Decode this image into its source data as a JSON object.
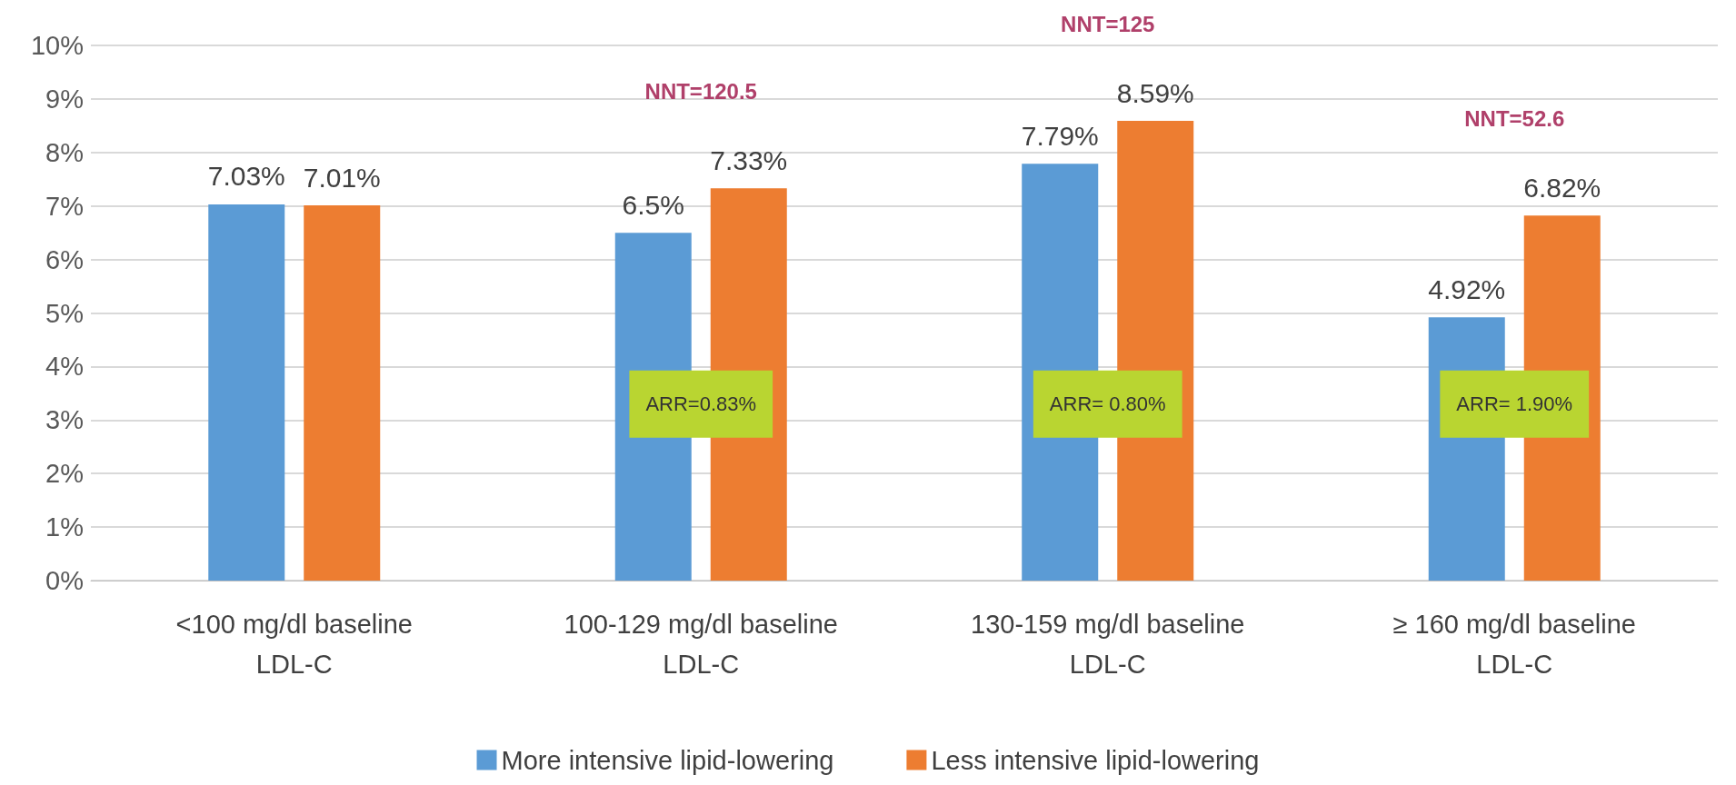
{
  "chart_data": {
    "type": "bar",
    "categories": [
      "<100 mg/dl baseline\nLDL-C",
      "100-129 mg/dl baseline\nLDL-C",
      "130-159 mg/dl baseline\nLDL-C",
      "≥ 160 mg/dl baseline\nLDL-C"
    ],
    "series": [
      {
        "name": "More intensive lipid-lowering",
        "color": "#5b9bd5",
        "values": [
          7.03,
          6.5,
          7.79,
          4.92
        ],
        "value_labels": [
          "7.03%",
          "6.5%",
          "7.79%",
          "4.92%"
        ]
      },
      {
        "name": "Less intensive lipid-lowering",
        "color": "#ed7d31",
        "values": [
          7.01,
          7.33,
          8.59,
          6.82
        ],
        "value_labels": [
          "7.01%",
          "7.33%",
          "8.59%",
          "6.82%"
        ]
      }
    ],
    "ylim": [
      0,
      10
    ],
    "yticks": [
      {
        "value": 0,
        "label": "0%"
      },
      {
        "value": 1,
        "label": "1%"
      },
      {
        "value": 2,
        "label": "2%"
      },
      {
        "value": 3,
        "label": "3%"
      },
      {
        "value": 4,
        "label": "4%"
      },
      {
        "value": 5,
        "label": "5%"
      },
      {
        "value": 6,
        "label": "6%"
      },
      {
        "value": 7,
        "label": "7%"
      },
      {
        "value": 8,
        "label": "8%"
      },
      {
        "value": 9,
        "label": "9%"
      },
      {
        "value": 10,
        "label": "10%"
      }
    ],
    "annotations": [
      "NNT=120.5",
      "ARR=0.83%",
      "NNT=125",
      "ARR= 0.80%",
      "NNT=52.6",
      "ARR= 1.90%"
    ],
    "grid": "y",
    "legend": "bottom"
  }
}
